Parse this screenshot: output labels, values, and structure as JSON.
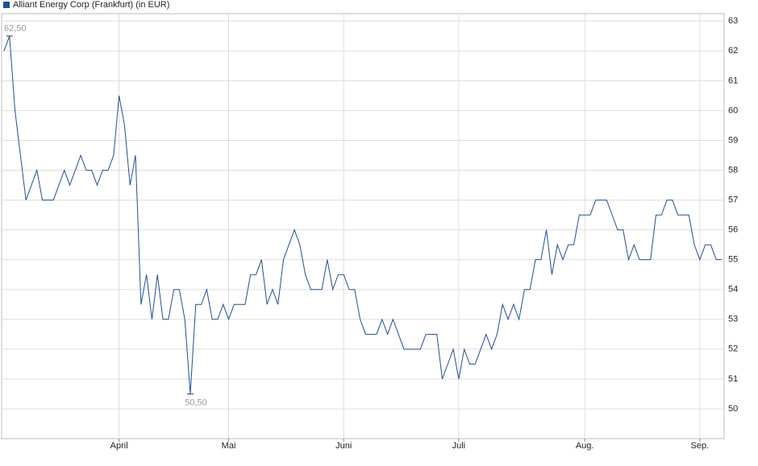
{
  "chart_data": {
    "type": "line",
    "categories": [
      null,
      null,
      null,
      null,
      null,
      null,
      null,
      null,
      null,
      null,
      null,
      null,
      null,
      null,
      null,
      null,
      null,
      null,
      null,
      null,
      null,
      "April",
      null,
      null,
      null,
      null,
      null,
      null,
      null,
      null,
      null,
      null,
      null,
      null,
      null,
      null,
      null,
      null,
      null,
      null,
      null,
      "Mai",
      null,
      null,
      null,
      null,
      null,
      null,
      null,
      null,
      null,
      null,
      null,
      null,
      null,
      null,
      null,
      null,
      null,
      null,
      null,
      null,
      "Juni",
      null,
      null,
      null,
      null,
      null,
      null,
      null,
      null,
      null,
      null,
      null,
      null,
      null,
      null,
      null,
      null,
      null,
      null,
      null,
      null,
      "Juli",
      null,
      null,
      null,
      null,
      null,
      null,
      null,
      null,
      null,
      null,
      null,
      null,
      null,
      null,
      null,
      null,
      null,
      null,
      null,
      null,
      null,
      null,
      "Aug.",
      null,
      null,
      null,
      null,
      null,
      null,
      null,
      null,
      null,
      null,
      null,
      null,
      null,
      null,
      null,
      null,
      null,
      null,
      null,
      null,
      "Sep.",
      null,
      null,
      null,
      null
    ],
    "series": [
      {
        "name": "Alliant Energy Corp (Frankfurt) (in EUR)",
        "color": "#1f4e9a",
        "values": [
          62,
          62.5,
          60,
          58.5,
          57,
          57.5,
          58,
          57,
          57,
          57,
          57.5,
          58,
          57.5,
          58,
          58.5,
          58,
          58,
          57.5,
          58,
          58,
          58.5,
          60.5,
          59.5,
          57.5,
          58.5,
          53.5,
          54.5,
          53,
          54.5,
          53,
          53,
          54,
          54,
          53,
          50.5,
          53.5,
          53.5,
          54,
          53,
          53,
          53.5,
          53,
          53.5,
          53.5,
          53.5,
          54.5,
          54.5,
          55,
          53.5,
          54,
          53.5,
          55,
          55.5,
          56,
          55.5,
          54.5,
          54,
          54,
          54,
          55,
          54,
          54.5,
          54.5,
          54,
          54,
          53,
          52.5,
          52.5,
          52.5,
          53,
          52.5,
          53,
          52.5,
          52,
          52,
          52,
          52,
          52.5,
          52.5,
          52.5,
          51,
          51.5,
          52,
          51,
          52,
          51.5,
          51.5,
          52,
          52.5,
          52,
          52.5,
          53.5,
          53,
          53.5,
          53,
          54,
          54,
          55,
          55,
          56,
          54.5,
          55.5,
          55,
          55.5,
          55.5,
          56.5,
          56.5,
          56.5,
          57,
          57,
          57,
          56.5,
          56,
          56,
          55,
          55.5,
          55,
          55,
          55,
          56.5,
          56.5,
          57,
          57,
          56.5,
          56.5,
          56.5,
          55.5,
          55,
          55.5,
          55.5,
          55,
          55
        ],
        "value_labels": [
          null,
          "62,50",
          null,
          null,
          null,
          null,
          null,
          null,
          null,
          null,
          null,
          null,
          null,
          null,
          null,
          null,
          null,
          null,
          null,
          null,
          null,
          null,
          null,
          null,
          null,
          null,
          null,
          null,
          null,
          null,
          null,
          null,
          null,
          null,
          "50,50",
          null,
          null,
          null,
          null,
          null,
          null,
          null,
          null,
          null,
          null,
          null,
          null,
          null,
          null,
          null,
          null,
          null,
          null,
          null,
          null,
          null,
          null,
          null,
          null,
          null,
          null,
          null,
          null,
          null,
          null,
          null,
          null,
          null,
          null,
          null,
          null,
          null,
          null,
          null,
          null,
          null,
          null,
          null,
          null,
          null,
          null,
          null,
          null,
          null,
          null,
          null,
          null,
          null,
          null,
          null,
          null,
          null,
          null,
          null,
          null,
          null,
          null,
          null,
          null,
          null,
          null,
          null,
          null,
          null,
          null,
          null,
          null,
          null,
          null,
          null,
          null,
          null,
          null,
          null,
          null,
          null,
          null,
          null,
          null,
          null,
          null,
          null,
          null,
          null,
          null,
          null,
          null,
          null,
          null,
          null,
          null,
          null
        ]
      }
    ],
    "ylim": [
      49,
      63.25
    ],
    "yticks": [
      50,
      51,
      52,
      53,
      54,
      55,
      56,
      57,
      58,
      59,
      60,
      61,
      62,
      63
    ],
    "grid": true
  }
}
